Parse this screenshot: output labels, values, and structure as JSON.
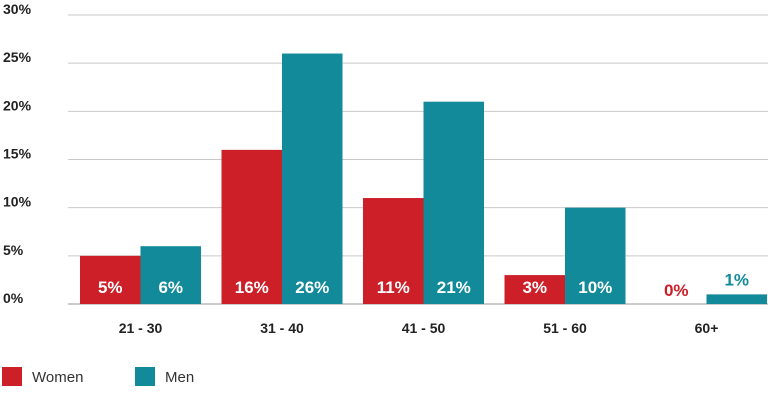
{
  "chart_data": {
    "type": "bar",
    "categories": [
      "21 - 30",
      "31 - 40",
      "41 - 50",
      "51 - 60",
      "60+"
    ],
    "series": [
      {
        "name": "Women",
        "color": "#cc1f27",
        "values": [
          5,
          16,
          11,
          3,
          0
        ],
        "labels": [
          "5%",
          "16%",
          "11%",
          "3%",
          "0%"
        ]
      },
      {
        "name": "Men",
        "color": "#138a9a",
        "values": [
          6,
          26,
          21,
          10,
          1
        ],
        "labels": [
          "6%",
          "26%",
          "21%",
          "10%",
          "1%"
        ]
      }
    ],
    "y_ticks": [
      "0%",
      "5%",
      "10%",
      "15%",
      "20%",
      "25%",
      "30%"
    ],
    "ylim": [
      0,
      30
    ],
    "grid": true,
    "legend_position": "bottom-left"
  }
}
